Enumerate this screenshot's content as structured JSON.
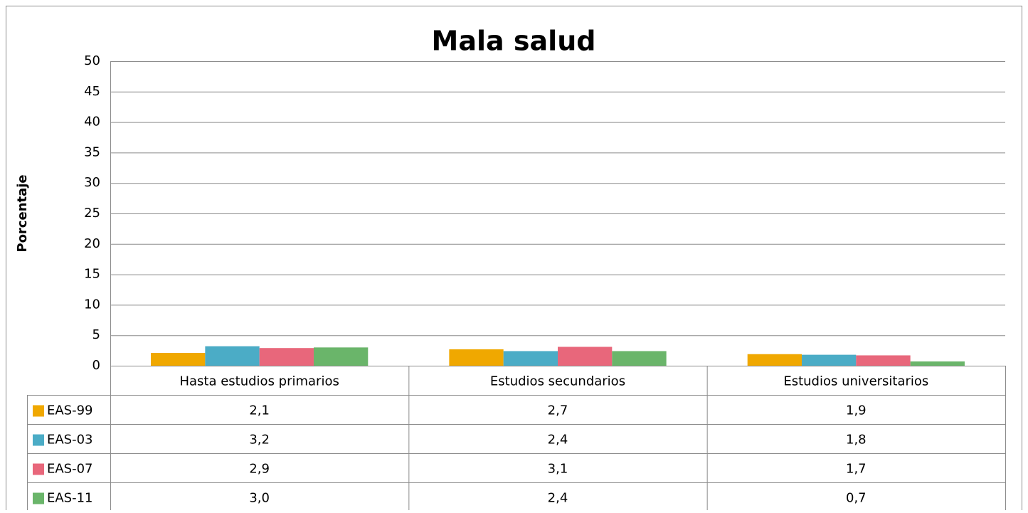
{
  "chart_data": {
    "type": "bar",
    "title": "Mala salud",
    "y_label": "Porcentaje",
    "categories": [
      "Hasta estudios primarios",
      "Estudios secundarios",
      "Estudios universitarios"
    ],
    "series": [
      {
        "name": "EAS-99",
        "color": "#f0a800",
        "values": [
          2.1,
          2.7,
          1.9
        ],
        "value_labels": [
          "2,1",
          "2,7",
          "1,9"
        ]
      },
      {
        "name": "EAS-03",
        "color": "#4bacc6",
        "values": [
          3.2,
          2.4,
          1.8
        ],
        "value_labels": [
          "3,2",
          "2,4",
          "1,8"
        ]
      },
      {
        "name": "EAS-07",
        "color": "#e8677b",
        "values": [
          2.9,
          3.1,
          1.7
        ],
        "value_labels": [
          "2,9",
          "3,1",
          "1,7"
        ]
      },
      {
        "name": "EAS-11",
        "color": "#6ab56a",
        "values": [
          3.0,
          2.4,
          0.7
        ],
        "value_labels": [
          "3,0",
          "2,4",
          "0,7"
        ]
      }
    ],
    "ylim": [
      0,
      50
    ],
    "yticks": [
      0,
      5,
      10,
      15,
      20,
      25,
      30,
      35,
      40,
      45,
      50
    ],
    "grid": true
  }
}
